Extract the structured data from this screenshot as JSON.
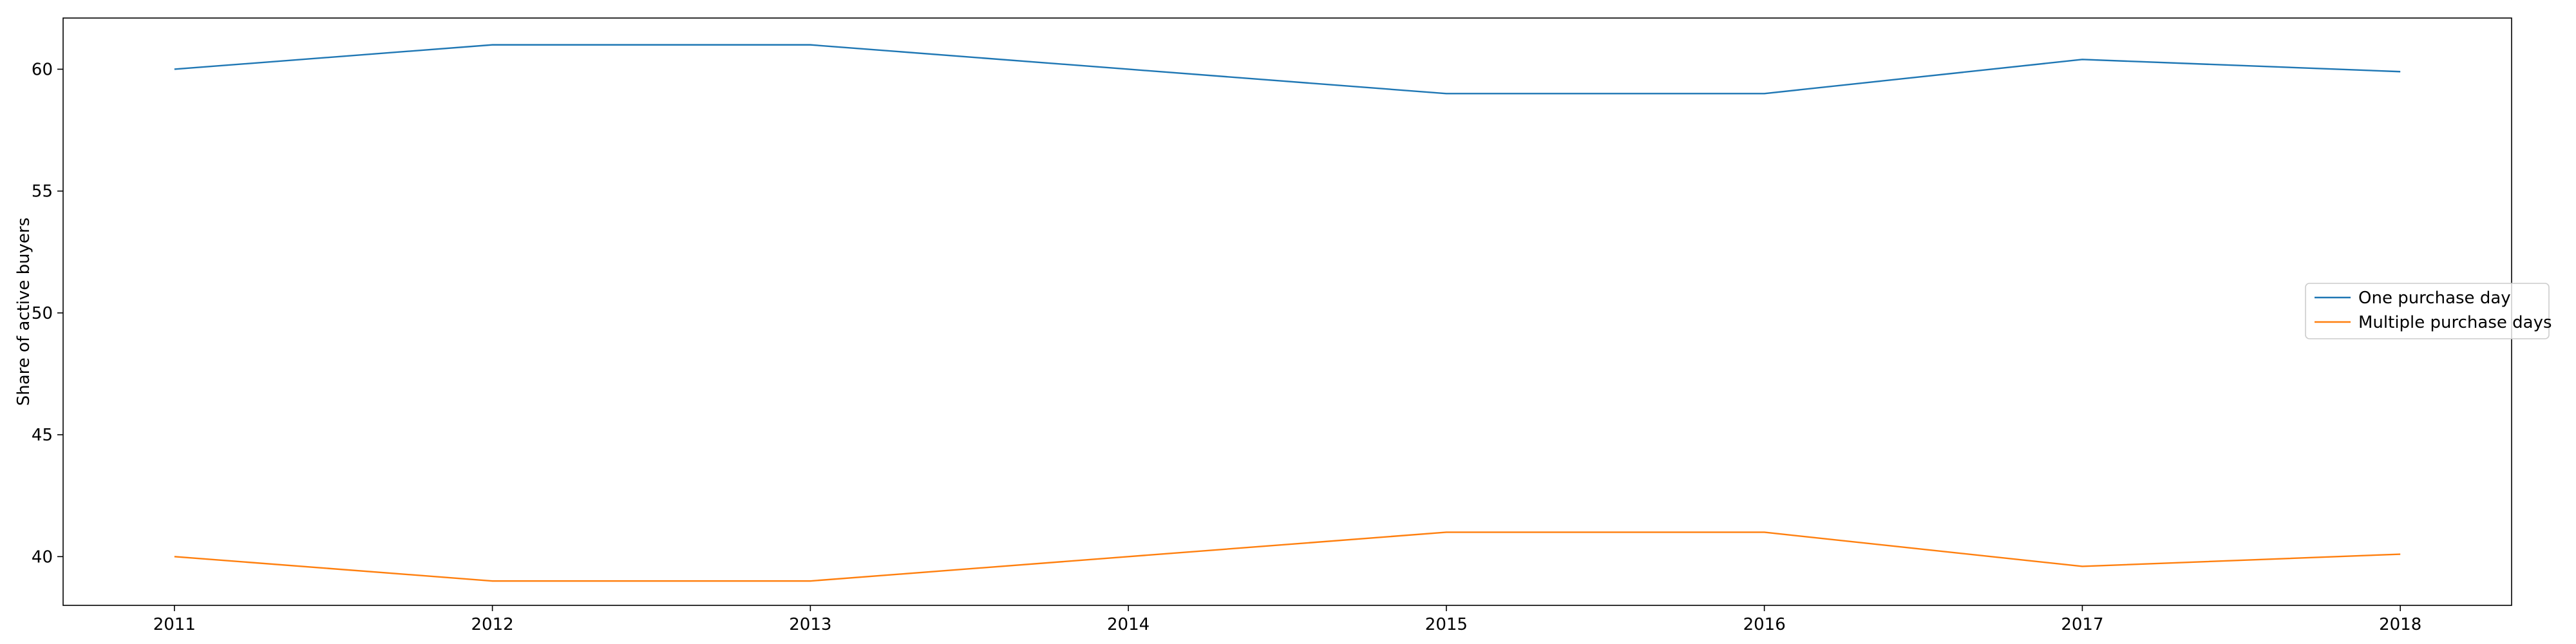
{
  "chart_data": {
    "type": "line",
    "title": "",
    "xlabel": "",
    "ylabel": "Share of active buyers",
    "x": [
      2011,
      2012,
      2013,
      2014,
      2015,
      2016,
      2017,
      2018
    ],
    "x_tick_labels": [
      "2011",
      "2012",
      "2013",
      "2014",
      "2015",
      "2016",
      "2017",
      "2018"
    ],
    "y_ticks": [
      40,
      45,
      50,
      55,
      60
    ],
    "y_tick_labels": [
      "40",
      "45",
      "50",
      "55",
      "60"
    ],
    "xlim": [
      2010.65,
      2018.35
    ],
    "ylim": [
      38.0,
      62.1
    ],
    "grid": false,
    "legend_position": "center-right",
    "series": [
      {
        "name": "One purchase day",
        "color": "#1f77b4",
        "values": [
          60.0,
          61.0,
          61.0,
          60.0,
          59.0,
          59.0,
          60.4,
          59.9
        ]
      },
      {
        "name": "Multiple purchase days",
        "color": "#ff7f0e",
        "values": [
          40.0,
          39.0,
          39.0,
          40.0,
          41.0,
          41.0,
          39.6,
          40.1
        ]
      }
    ]
  }
}
